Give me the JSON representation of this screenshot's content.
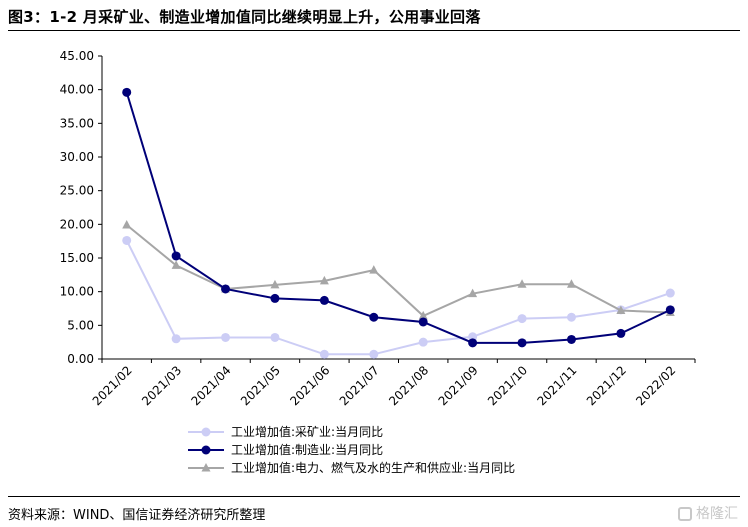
{
  "header": {
    "title": "图3：1-2 月采矿业、制造业增加值同比继续明显上升，公用事业回落"
  },
  "footer": {
    "source": "资料来源：WIND、国信证券经济研究所整理",
    "watermark": "格隆汇"
  },
  "colors": {
    "mining": "#cccdf5",
    "manufacturing": "#000078",
    "utilities": "#a6a6a6",
    "axis": "#000000"
  },
  "chart_data": {
    "type": "line",
    "title": "",
    "xlabel": "",
    "ylabel": "",
    "ylim": [
      0,
      45
    ],
    "yticks": [
      "0.00",
      "5.00",
      "10.00",
      "15.00",
      "20.00",
      "25.00",
      "30.00",
      "35.00",
      "40.00",
      "45.00"
    ],
    "categories": [
      "2021/02",
      "2021/03",
      "2021/04",
      "2021/05",
      "2021/06",
      "2021/07",
      "2021/08",
      "2021/09",
      "2021/10",
      "2021/11",
      "2021/12",
      "2022/02"
    ],
    "grid": false,
    "legend_position": "bottom",
    "series": [
      {
        "name": "工业增加值:采矿业:当月同比",
        "marker": "circle",
        "color": "#cccdf5",
        "values": [
          17.6,
          3.0,
          3.2,
          3.2,
          0.7,
          0.7,
          2.5,
          3.3,
          6.0,
          6.2,
          7.3,
          9.8
        ]
      },
      {
        "name": "工业增加值:制造业:当月同比",
        "marker": "circle",
        "color": "#000078",
        "values": [
          39.6,
          15.3,
          10.4,
          9.0,
          8.7,
          6.2,
          5.5,
          2.4,
          2.4,
          2.9,
          3.8,
          7.3
        ]
      },
      {
        "name": "工业增加值:电力、燃气及水的生产和供应业:当月同比",
        "marker": "triangle",
        "color": "#a6a6a6",
        "values": [
          19.9,
          13.9,
          10.4,
          11.0,
          11.6,
          13.2,
          6.4,
          9.7,
          11.1,
          11.1,
          7.2,
          6.9
        ]
      }
    ]
  }
}
